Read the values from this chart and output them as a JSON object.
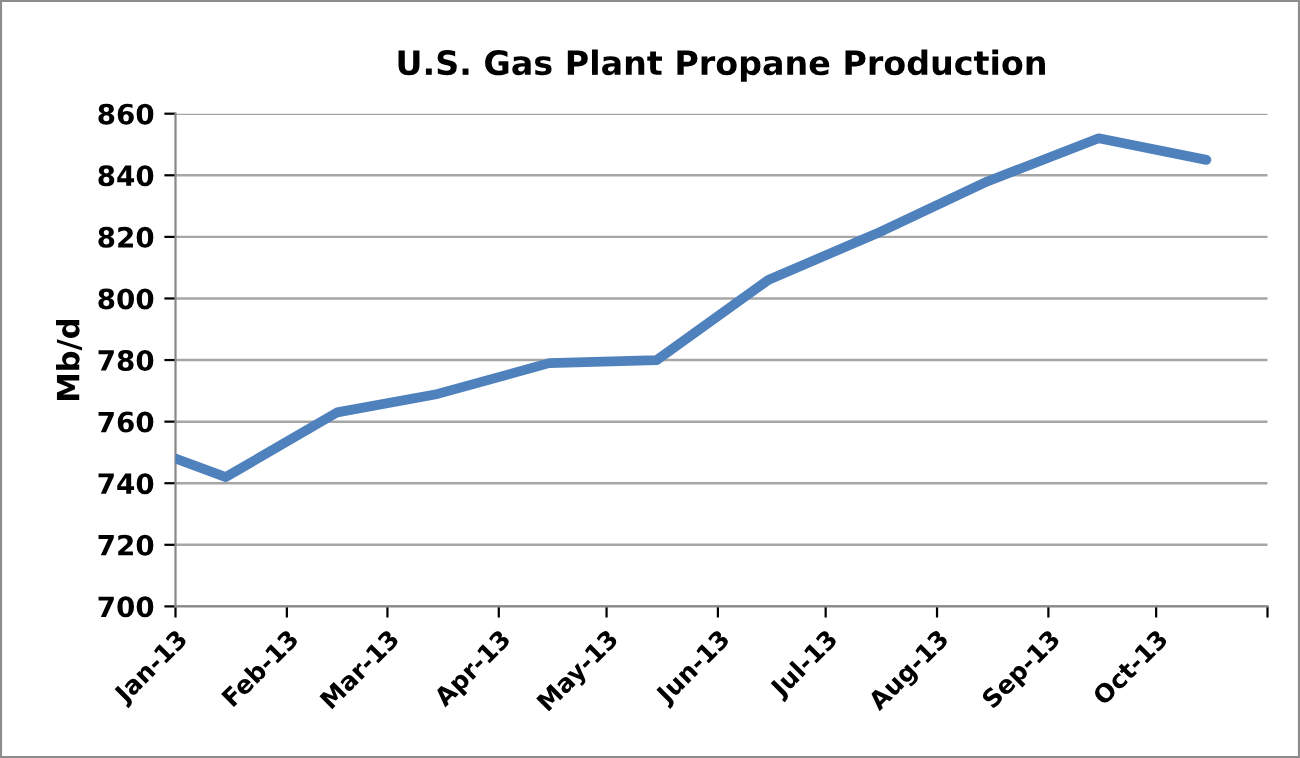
{
  "chart_data": {
    "type": "line",
    "title": "U.S. Gas Plant Propane Production",
    "ylabel": "Mb/d",
    "x": [
      "2013-01-01",
      "2013-01-15",
      "2013-02-15",
      "2013-03-15",
      "2013-04-15",
      "2013-05-15",
      "2013-06-15",
      "2013-07-15",
      "2013-08-15",
      "2013-09-15",
      "2013-10-15"
    ],
    "series": [
      {
        "color": "#4f81bd",
        "values": [
          748,
          742,
          763,
          769,
          779,
          780,
          806,
          821,
          838,
          852,
          845
        ]
      }
    ],
    "xlim": [
      "2013-01-01",
      "2013-11-01"
    ],
    "xticks": [
      {
        "value": "2013-01-01",
        "label": "Jan-13"
      },
      {
        "value": "2013-02-01",
        "label": "Feb-13"
      },
      {
        "value": "2013-03-01",
        "label": "Mar-13"
      },
      {
        "value": "2013-04-01",
        "label": "Apr-13"
      },
      {
        "value": "2013-05-01",
        "label": "May-13"
      },
      {
        "value": "2013-06-01",
        "label": "Jun-13"
      },
      {
        "value": "2013-07-01",
        "label": "Jul-13"
      },
      {
        "value": "2013-08-01",
        "label": "Aug-13"
      },
      {
        "value": "2013-09-01",
        "label": "Sep-13"
      },
      {
        "value": "2013-10-01",
        "label": "Oct-13"
      },
      {
        "value": "2013-11-01",
        "label": null
      }
    ],
    "ylim": [
      700,
      860
    ],
    "yticks": [
      700,
      720,
      740,
      760,
      780,
      800,
      820,
      840,
      860
    ],
    "grid": "y",
    "legend": false,
    "marker": "none",
    "line_style": "solid"
  }
}
